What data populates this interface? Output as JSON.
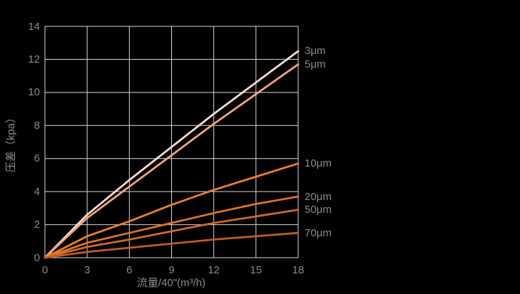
{
  "chart_data": {
    "type": "line",
    "title": "",
    "xlabel": "流量/40\"(m³/h)",
    "ylabel": "压差（kpa）",
    "xlim": [
      0,
      18
    ],
    "ylim": [
      0,
      14
    ],
    "xticks": [
      0,
      3,
      6,
      9,
      12,
      15,
      18
    ],
    "yticks": [
      0,
      2,
      4,
      6,
      8,
      10,
      12,
      14
    ],
    "grid": true,
    "legend_position": "labels-right-of-lines",
    "x": [
      0,
      3,
      6,
      9,
      12,
      15,
      18
    ],
    "series": [
      {
        "name": "3μm",
        "color": "#f8dcd0",
        "values": [
          0,
          2.6,
          4.7,
          6.7,
          8.7,
          10.6,
          12.5
        ]
      },
      {
        "name": "5μm",
        "color": "#f1a483",
        "values": [
          0,
          2.4,
          4.3,
          6.2,
          8.1,
          9.9,
          11.7
        ]
      },
      {
        "name": "10μm",
        "color": "#e9812e",
        "values": [
          0,
          1.3,
          2.2,
          3.2,
          4.1,
          4.9,
          5.7
        ]
      },
      {
        "name": "20μm",
        "color": "#de7229",
        "values": [
          0,
          0.9,
          1.5,
          2.1,
          2.7,
          3.25,
          3.7
        ]
      },
      {
        "name": "50μm",
        "color": "#d06927",
        "values": [
          0,
          0.65,
          1.1,
          1.6,
          2.1,
          2.5,
          2.9
        ]
      },
      {
        "name": "70μm",
        "color": "#bd5c22",
        "values": [
          0,
          0.35,
          0.6,
          0.85,
          1.1,
          1.3,
          1.5
        ]
      }
    ]
  },
  "colors": {
    "background": "#000000",
    "grid": "#d9d9d9",
    "text": "#8a8a8a"
  }
}
